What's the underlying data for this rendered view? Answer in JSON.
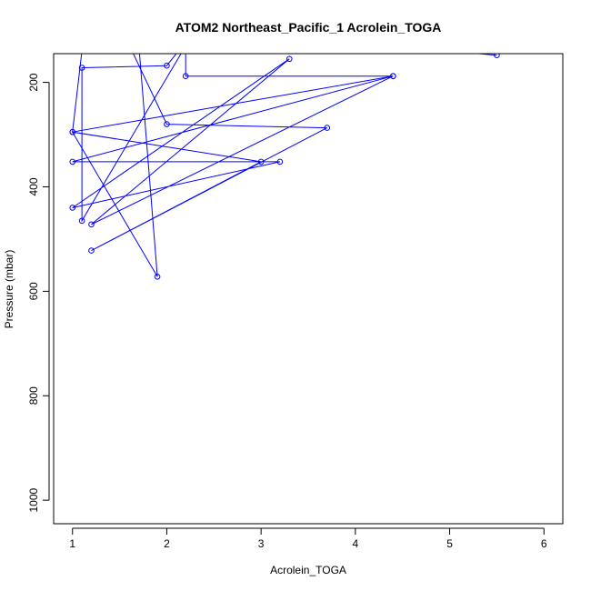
{
  "chart_data": {
    "type": "line",
    "title": "ATOM2 Northeast_Pacific_1 Acrolein_TOGA",
    "xlabel": "Acrolein_TOGA",
    "ylabel": "Pressure (mbar)",
    "xlim": [
      0.8,
      6.2
    ],
    "ylim": [
      1045,
      145
    ],
    "y_reversed": true,
    "x_ticks": [
      1,
      2,
      3,
      4,
      5,
      6
    ],
    "y_ticks": [
      200,
      400,
      600,
      800,
      1000
    ],
    "grid": false,
    "series": [
      {
        "color": "#0000ff",
        "marker": "open-circle",
        "x": [
          5.5,
          2.3,
          2.0,
          1.1,
          1.1,
          2.2,
          2.2,
          4.4,
          1.2,
          3.3,
          1.0,
          3.2,
          1.0,
          4.4,
          1.0,
          1.1,
          1.5,
          2.0,
          3.7,
          1.2,
          3.0,
          1.0,
          1.9,
          1.7
        ],
        "y": [
          148,
          100,
          168,
          172,
          465,
          130,
          188,
          188,
          472,
          155,
          440,
          352,
          352,
          188,
          295,
          140,
          90,
          280,
          287,
          522,
          352,
          295,
          572,
          120
        ]
      }
    ]
  }
}
